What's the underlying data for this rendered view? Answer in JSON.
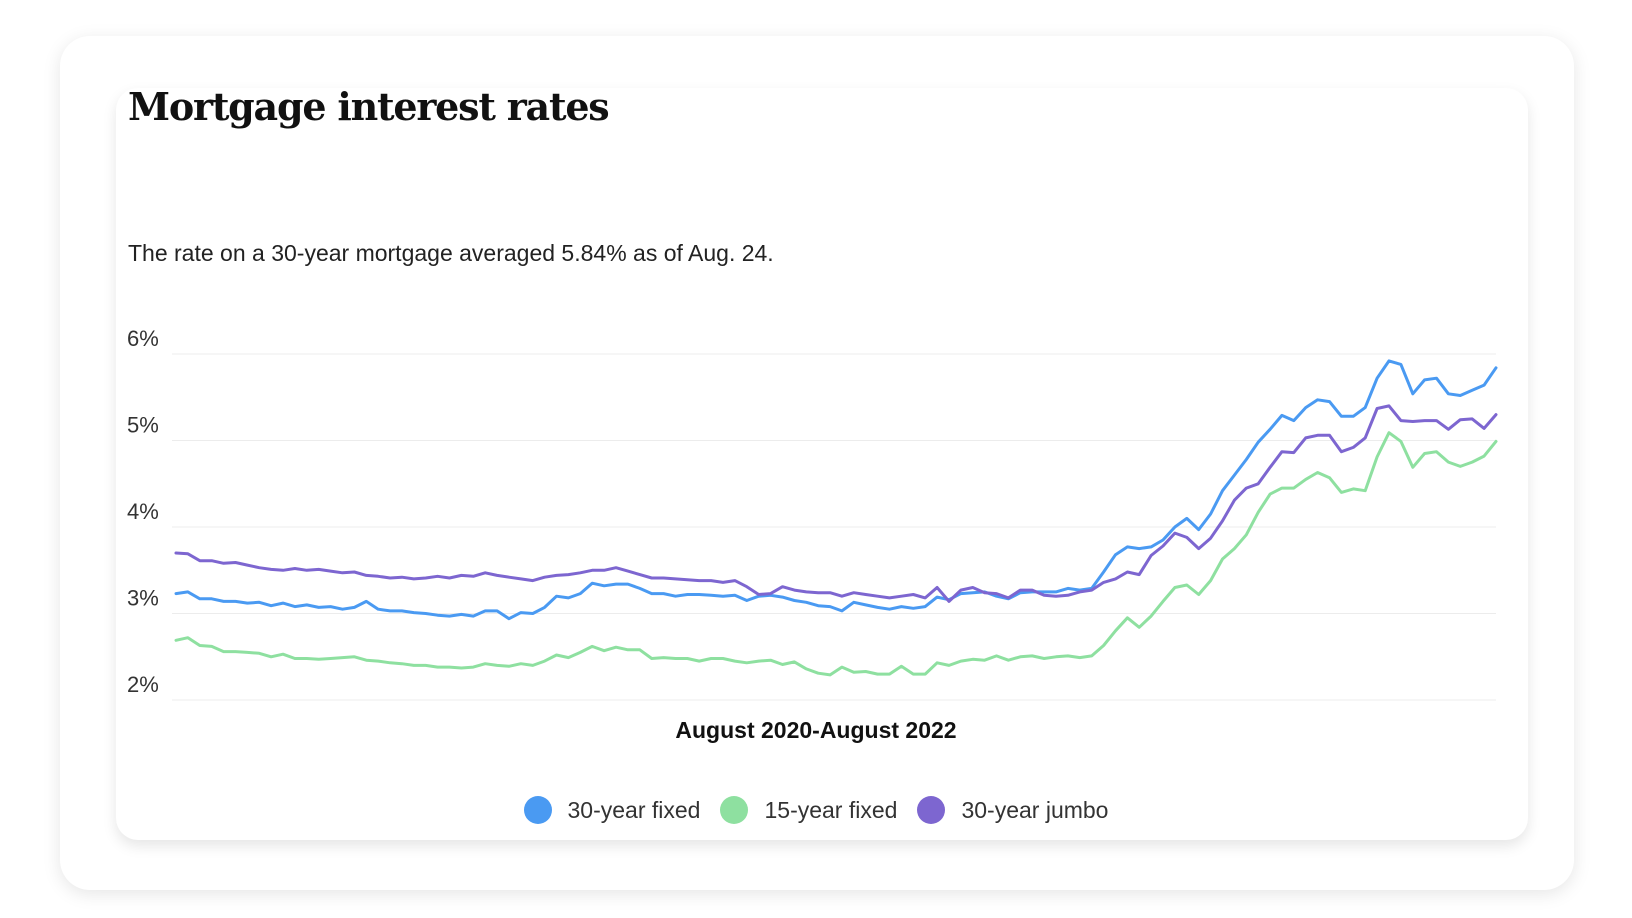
{
  "card": {
    "title": "Mortgage interest rates",
    "subtitle": "The rate on a 30-year mortgage averaged 5.84% as of Aug. 24."
  },
  "chart_data": {
    "type": "line",
    "title": "Mortgage interest rates",
    "subtitle": "The rate on a 30-year mortgage averaged 5.84% as of Aug. 24.",
    "xlabel": "August 2020-August 2022",
    "ylabel": "",
    "ylim": [
      2,
      6
    ],
    "yticks": [
      6,
      5,
      4,
      3,
      2
    ],
    "ytick_labels": [
      "6%",
      "5%",
      "4%",
      "3%",
      "2%"
    ],
    "grid": true,
    "legend_position": "bottom-center",
    "x_range": [
      "2020-08",
      "2022-08"
    ],
    "series": [
      {
        "name": "30-year fixed",
        "color": "#4a9af2",
        "values": [
          3.23,
          3.25,
          3.17,
          3.17,
          3.14,
          3.14,
          3.12,
          3.13,
          3.09,
          3.12,
          3.08,
          3.1,
          3.07,
          3.08,
          3.05,
          3.07,
          3.14,
          3.05,
          3.03,
          3.03,
          3.01,
          3.0,
          2.98,
          2.97,
          2.99,
          2.97,
          3.03,
          3.03,
          2.94,
          3.01,
          3.0,
          3.07,
          3.2,
          3.18,
          3.23,
          3.35,
          3.32,
          3.34,
          3.34,
          3.29,
          3.23,
          3.23,
          3.2,
          3.22,
          3.22,
          3.21,
          3.2,
          3.21,
          3.15,
          3.2,
          3.21,
          3.19,
          3.15,
          3.13,
          3.09,
          3.08,
          3.03,
          3.13,
          3.1,
          3.07,
          3.05,
          3.08,
          3.06,
          3.08,
          3.19,
          3.16,
          3.23,
          3.24,
          3.25,
          3.2,
          3.17,
          3.24,
          3.25,
          3.25,
          3.25,
          3.29,
          3.27,
          3.29,
          3.48,
          3.68,
          3.77,
          3.75,
          3.77,
          3.85,
          4.0,
          4.1,
          3.97,
          4.15,
          4.42,
          4.6,
          4.78,
          4.98,
          5.13,
          5.29,
          5.23,
          5.38,
          5.47,
          5.45,
          5.28,
          5.28,
          5.38,
          5.72,
          5.92,
          5.88,
          5.54,
          5.7,
          5.72,
          5.54,
          5.52,
          5.58,
          5.64,
          5.84
        ]
      },
      {
        "name": "15-year fixed",
        "color": "#8ee0a0",
        "values": [
          2.69,
          2.72,
          2.63,
          2.62,
          2.56,
          2.56,
          2.55,
          2.54,
          2.5,
          2.53,
          2.48,
          2.48,
          2.47,
          2.48,
          2.49,
          2.5,
          2.46,
          2.45,
          2.43,
          2.42,
          2.4,
          2.4,
          2.38,
          2.38,
          2.37,
          2.38,
          2.42,
          2.4,
          2.39,
          2.42,
          2.4,
          2.45,
          2.52,
          2.49,
          2.55,
          2.62,
          2.57,
          2.61,
          2.58,
          2.58,
          2.48,
          2.49,
          2.48,
          2.48,
          2.45,
          2.48,
          2.48,
          2.45,
          2.43,
          2.45,
          2.46,
          2.41,
          2.44,
          2.36,
          2.31,
          2.29,
          2.38,
          2.32,
          2.33,
          2.3,
          2.3,
          2.39,
          2.3,
          2.3,
          2.43,
          2.4,
          2.45,
          2.47,
          2.46,
          2.51,
          2.46,
          2.5,
          2.51,
          2.48,
          2.5,
          2.51,
          2.49,
          2.51,
          2.63,
          2.8,
          2.95,
          2.84,
          2.97,
          3.14,
          3.3,
          3.33,
          3.22,
          3.38,
          3.63,
          3.75,
          3.91,
          4.17,
          4.38,
          4.45,
          4.45,
          4.55,
          4.63,
          4.57,
          4.4,
          4.44,
          4.42,
          4.81,
          5.09,
          4.99,
          4.69,
          4.85,
          4.87,
          4.75,
          4.7,
          4.75,
          4.82,
          4.99
        ]
      },
      {
        "name": "30-year jumbo",
        "color": "#7d66d0",
        "values": [
          3.7,
          3.69,
          3.61,
          3.61,
          3.58,
          3.59,
          3.56,
          3.53,
          3.51,
          3.5,
          3.52,
          3.5,
          3.51,
          3.49,
          3.47,
          3.48,
          3.44,
          3.43,
          3.41,
          3.42,
          3.4,
          3.41,
          3.43,
          3.41,
          3.44,
          3.43,
          3.47,
          3.44,
          3.42,
          3.4,
          3.38,
          3.42,
          3.44,
          3.45,
          3.47,
          3.5,
          3.5,
          3.53,
          3.49,
          3.45,
          3.41,
          3.41,
          3.4,
          3.39,
          3.38,
          3.38,
          3.36,
          3.38,
          3.31,
          3.22,
          3.23,
          3.31,
          3.27,
          3.25,
          3.24,
          3.24,
          3.2,
          3.24,
          3.22,
          3.2,
          3.18,
          3.2,
          3.22,
          3.18,
          3.3,
          3.14,
          3.27,
          3.3,
          3.24,
          3.23,
          3.18,
          3.27,
          3.27,
          3.21,
          3.2,
          3.21,
          3.25,
          3.27,
          3.36,
          3.4,
          3.48,
          3.45,
          3.67,
          3.78,
          3.93,
          3.88,
          3.75,
          3.87,
          4.07,
          4.31,
          4.45,
          4.5,
          4.69,
          4.87,
          4.86,
          5.03,
          5.06,
          5.06,
          4.87,
          4.92,
          5.03,
          5.37,
          5.4,
          5.23,
          5.22,
          5.23,
          5.23,
          5.13,
          5.24,
          5.25,
          5.14,
          5.3
        ]
      }
    ]
  }
}
